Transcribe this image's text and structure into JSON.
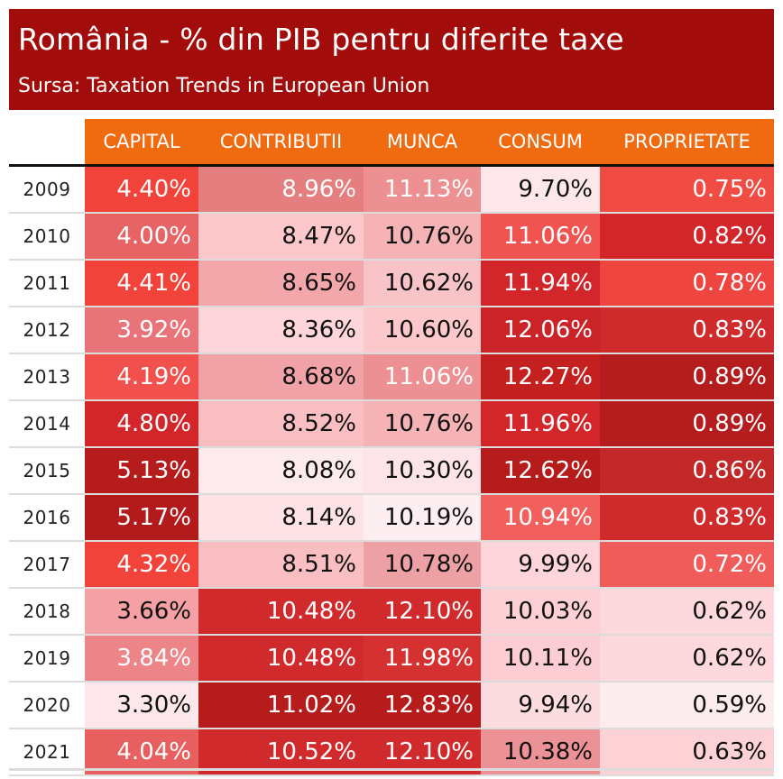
{
  "chart_data": {
    "type": "table",
    "title": "România - % din PIB pentru diferite taxe",
    "subtitle": "Sursa: Taxation Trends in European Union",
    "columns": [
      "CAPITAL",
      "CONTRIBUTII",
      "MUNCA",
      "CONSUM",
      "PROPRIETATE"
    ],
    "rows": [
      {
        "year": "2009",
        "cells": [
          {
            "text": "4.40%",
            "bg": "#f2433a",
            "fg": "#ffffff"
          },
          {
            "text": "8.96%",
            "bg": "#e57f7f",
            "fg": "#ffffff"
          },
          {
            "text": "11.13%",
            "bg": "#ec9092",
            "fg": "#ffffff"
          },
          {
            "text": "9.70%",
            "bg": "#fde7ea",
            "fg": "#111111"
          },
          {
            "text": "0.75%",
            "bg": "#f04c43",
            "fg": "#ffffff"
          }
        ]
      },
      {
        "year": "2010",
        "cells": [
          {
            "text": "4.00%",
            "bg": "#e86464",
            "fg": "#ffffff"
          },
          {
            "text": "8.47%",
            "bg": "#fcc8cc",
            "fg": "#111111"
          },
          {
            "text": "10.76%",
            "bg": "#f6b3b6",
            "fg": "#111111"
          },
          {
            "text": "11.06%",
            "bg": "#ef5450",
            "fg": "#ffffff"
          },
          {
            "text": "0.82%",
            "bg": "#d3262b",
            "fg": "#ffffff"
          }
        ]
      },
      {
        "year": "2011",
        "cells": [
          {
            "text": "4.41%",
            "bg": "#f2433a",
            "fg": "#ffffff"
          },
          {
            "text": "8.65%",
            "bg": "#f4a7ab",
            "fg": "#111111"
          },
          {
            "text": "10.62%",
            "bg": "#f9c4c8",
            "fg": "#111111"
          },
          {
            "text": "11.94%",
            "bg": "#d3262b",
            "fg": "#ffffff"
          },
          {
            "text": "0.78%",
            "bg": "#ee4541",
            "fg": "#ffffff"
          }
        ]
      },
      {
        "year": "2012",
        "cells": [
          {
            "text": "3.92%",
            "bg": "#e87378",
            "fg": "#ffffff"
          },
          {
            "text": "8.36%",
            "bg": "#fdd5da",
            "fg": "#111111"
          },
          {
            "text": "10.60%",
            "bg": "#fcc8cc",
            "fg": "#111111"
          },
          {
            "text": "12.06%",
            "bg": "#ca2429",
            "fg": "#ffffff"
          },
          {
            "text": "0.83%",
            "bg": "#d02b2c",
            "fg": "#ffffff"
          }
        ]
      },
      {
        "year": "2013",
        "cells": [
          {
            "text": "4.19%",
            "bg": "#f1504d",
            "fg": "#ffffff"
          },
          {
            "text": "8.68%",
            "bg": "#f0a2a6",
            "fg": "#111111"
          },
          {
            "text": "11.06%",
            "bg": "#ec9093",
            "fg": "#ffffff"
          },
          {
            "text": "12.27%",
            "bg": "#c4201f",
            "fg": "#ffffff"
          },
          {
            "text": "0.89%",
            "bg": "#b41c1e",
            "fg": "#ffffff"
          }
        ]
      },
      {
        "year": "2014",
        "cells": [
          {
            "text": "4.80%",
            "bg": "#d3262b",
            "fg": "#ffffff"
          },
          {
            "text": "8.52%",
            "bg": "#f9bec2",
            "fg": "#111111"
          },
          {
            "text": "10.76%",
            "bg": "#f6b3b6",
            "fg": "#111111"
          },
          {
            "text": "11.96%",
            "bg": "#d3262b",
            "fg": "#ffffff"
          },
          {
            "text": "0.89%",
            "bg": "#b41c1e",
            "fg": "#ffffff"
          }
        ]
      },
      {
        "year": "2015",
        "cells": [
          {
            "text": "5.13%",
            "bg": "#b71c1c",
            "fg": "#ffffff"
          },
          {
            "text": "8.08%",
            "bg": "#fdeaed",
            "fg": "#111111"
          },
          {
            "text": "10.30%",
            "bg": "#fde4e8",
            "fg": "#111111"
          },
          {
            "text": "12.62%",
            "bg": "#b71c1c",
            "fg": "#ffffff"
          },
          {
            "text": "0.86%",
            "bg": "#c22828",
            "fg": "#ffffff"
          }
        ]
      },
      {
        "year": "2016",
        "cells": [
          {
            "text": "5.17%",
            "bg": "#b31a1c",
            "fg": "#ffffff"
          },
          {
            "text": "8.14%",
            "bg": "#fde2e6",
            "fg": "#111111"
          },
          {
            "text": "10.19%",
            "bg": "#fdeef1",
            "fg": "#111111"
          },
          {
            "text": "10.94%",
            "bg": "#f2605e",
            "fg": "#ffffff"
          },
          {
            "text": "0.83%",
            "bg": "#d02b2c",
            "fg": "#ffffff"
          }
        ]
      },
      {
        "year": "2017",
        "cells": [
          {
            "text": "4.32%",
            "bg": "#f2433a",
            "fg": "#ffffff"
          },
          {
            "text": "8.51%",
            "bg": "#f9bec2",
            "fg": "#111111"
          },
          {
            "text": "10.78%",
            "bg": "#eda1a4",
            "fg": "#111111"
          },
          {
            "text": "9.99%",
            "bg": "#fdd5da",
            "fg": "#111111"
          },
          {
            "text": "0.72%",
            "bg": "#ef5c5a",
            "fg": "#ffffff"
          }
        ]
      },
      {
        "year": "2018",
        "cells": [
          {
            "text": "3.66%",
            "bg": "#f4a0a4",
            "fg": "#111111"
          },
          {
            "text": "10.48%",
            "bg": "#d12a2c",
            "fg": "#ffffff"
          },
          {
            "text": "12.10%",
            "bg": "#d12a2c",
            "fg": "#ffffff"
          },
          {
            "text": "10.03%",
            "bg": "#fcd0d5",
            "fg": "#111111"
          },
          {
            "text": "0.62%",
            "bg": "#fdd8dd",
            "fg": "#111111"
          }
        ]
      },
      {
        "year": "2019",
        "cells": [
          {
            "text": "3.84%",
            "bg": "#ec8488",
            "fg": "#ffffff"
          },
          {
            "text": "10.48%",
            "bg": "#d12a2c",
            "fg": "#ffffff"
          },
          {
            "text": "11.98%",
            "bg": "#d63131",
            "fg": "#ffffff"
          },
          {
            "text": "10.11%",
            "bg": "#fccdd2",
            "fg": "#111111"
          },
          {
            "text": "0.62%",
            "bg": "#fdd8dd",
            "fg": "#111111"
          }
        ]
      },
      {
        "year": "2020",
        "cells": [
          {
            "text": "3.30%",
            "bg": "#fde7ea",
            "fg": "#111111"
          },
          {
            "text": "11.02%",
            "bg": "#b71c1c",
            "fg": "#ffffff"
          },
          {
            "text": "12.83%",
            "bg": "#b71c1c",
            "fg": "#ffffff"
          },
          {
            "text": "9.94%",
            "bg": "#fddcdf",
            "fg": "#111111"
          },
          {
            "text": "0.59%",
            "bg": "#fdecee",
            "fg": "#111111"
          }
        ]
      },
      {
        "year": "2021",
        "cells": [
          {
            "text": "4.04%",
            "bg": "#e85f5f",
            "fg": "#ffffff"
          },
          {
            "text": "10.52%",
            "bg": "#d12a2c",
            "fg": "#ffffff"
          },
          {
            "text": "12.10%",
            "bg": "#d12a2c",
            "fg": "#ffffff"
          },
          {
            "text": "10.38%",
            "bg": "#ec9296",
            "fg": "#111111"
          },
          {
            "text": "0.63%",
            "bg": "#fdd2d7",
            "fg": "#111111"
          }
        ]
      }
    ]
  }
}
